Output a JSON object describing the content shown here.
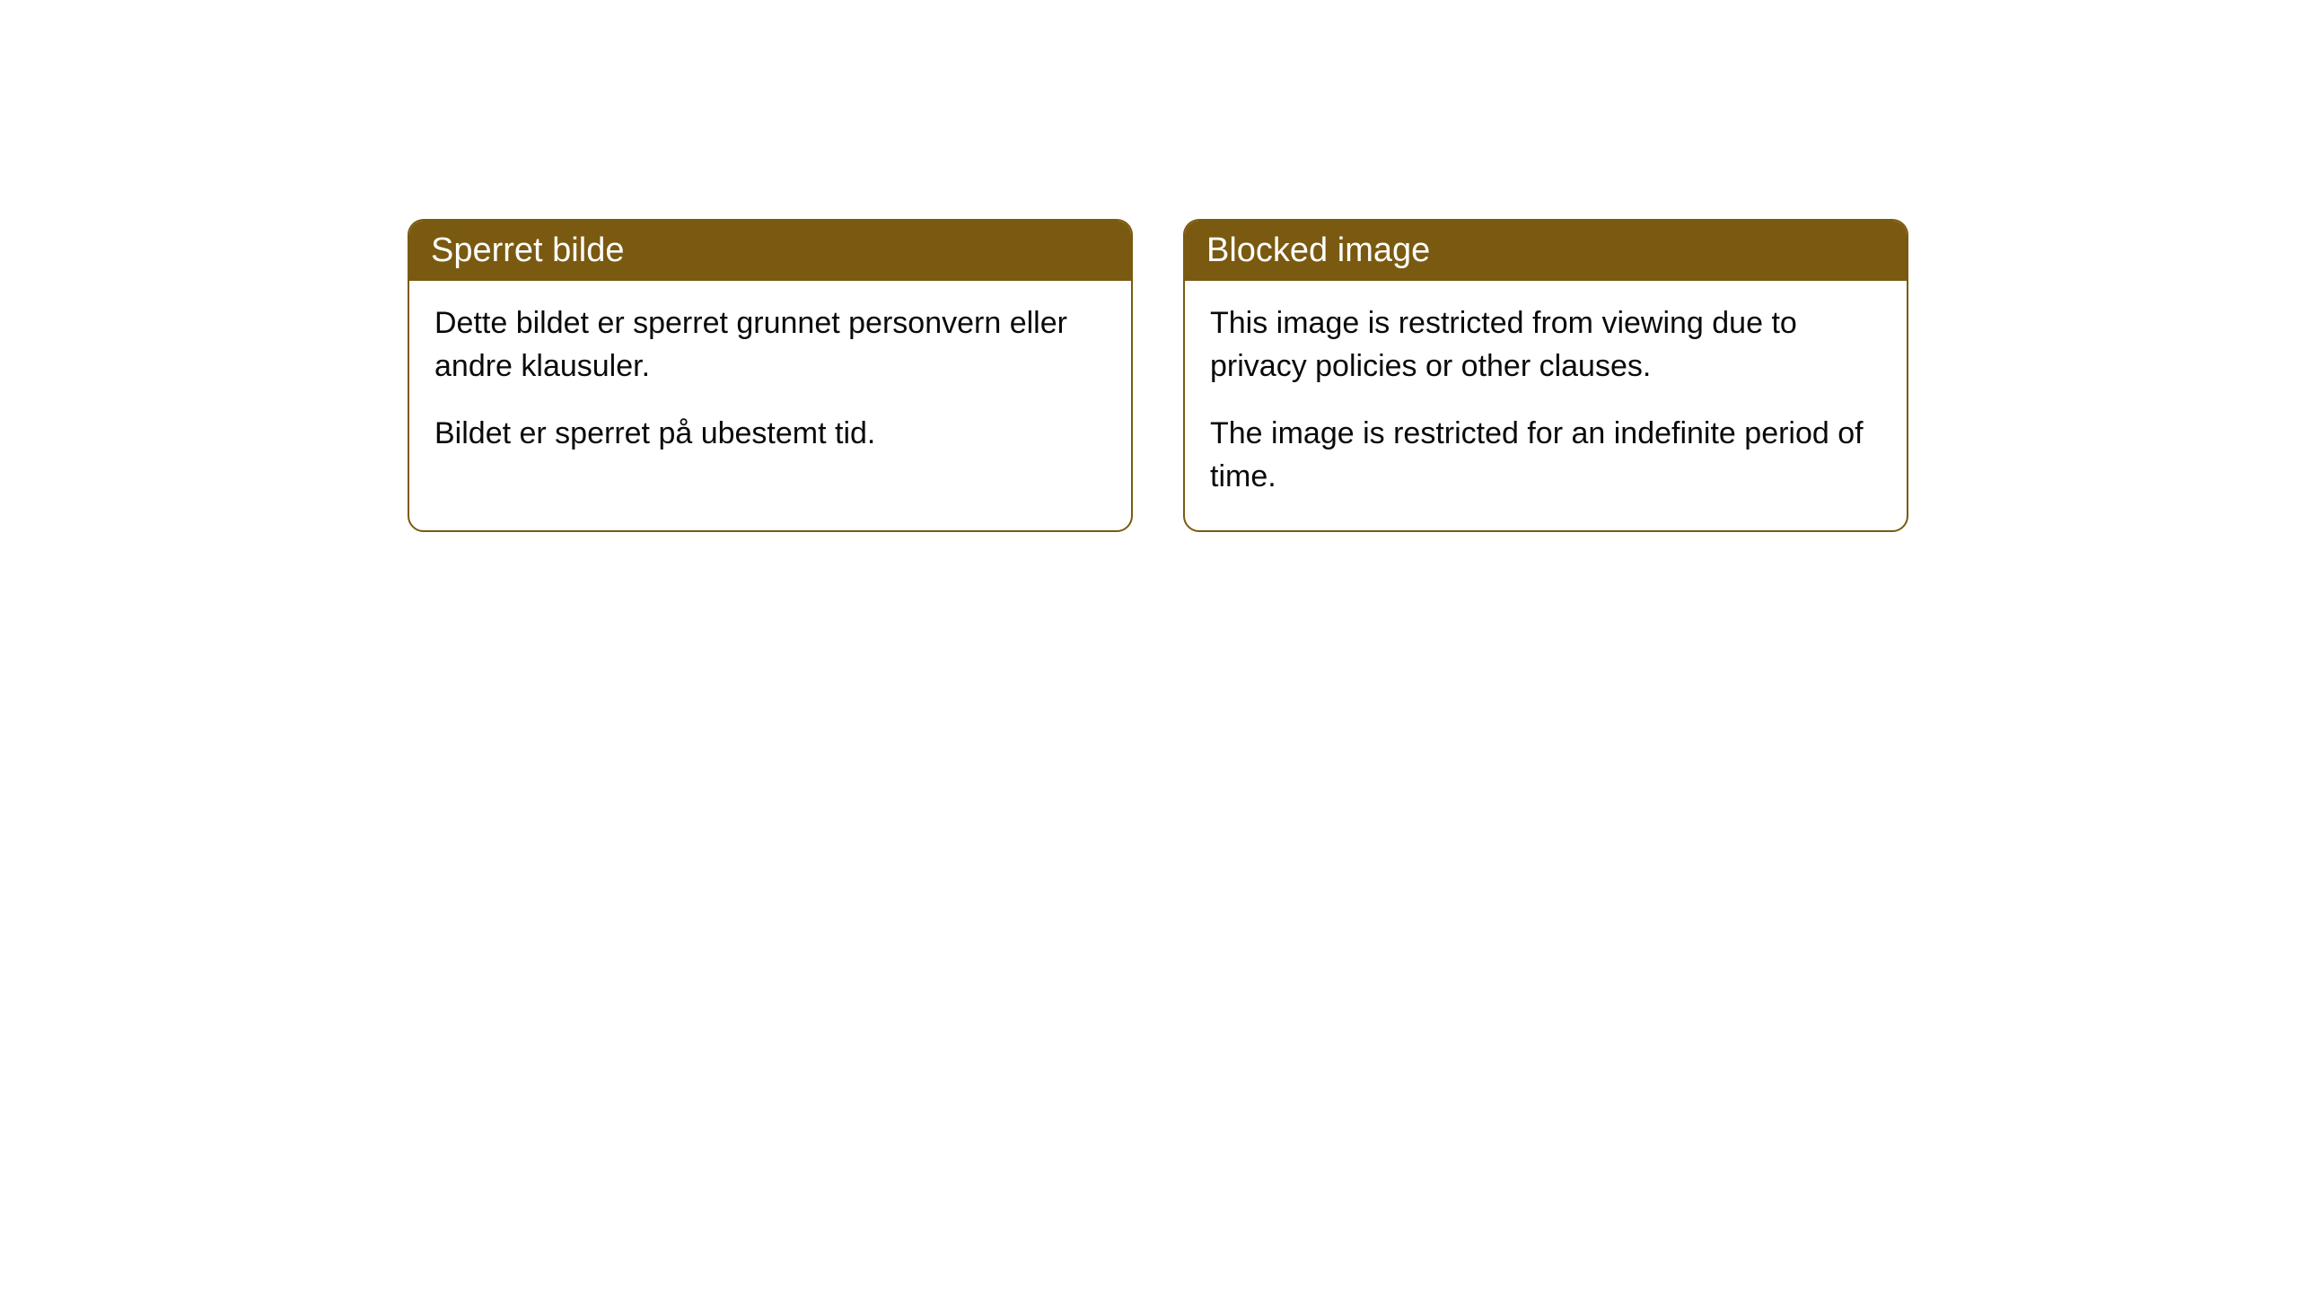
{
  "cards": [
    {
      "title": "Sperret bilde",
      "paragraph1": "Dette bildet er sperret grunnet personvern eller andre klausuler.",
      "paragraph2": "Bildet er sperret på ubestemt tid."
    },
    {
      "title": "Blocked image",
      "paragraph1": "This image is restricted from viewing due to privacy policies or other clauses.",
      "paragraph2": "The image is restricted for an indefinite period of time."
    }
  ],
  "styling": {
    "header_bg_color": "#7a5a10",
    "header_text_color": "#ffffff",
    "border_color": "#7a5a10",
    "body_text_color": "#0a0a0a",
    "page_bg_color": "#ffffff",
    "border_radius": 18,
    "header_fontsize": 38,
    "body_fontsize": 34
  }
}
